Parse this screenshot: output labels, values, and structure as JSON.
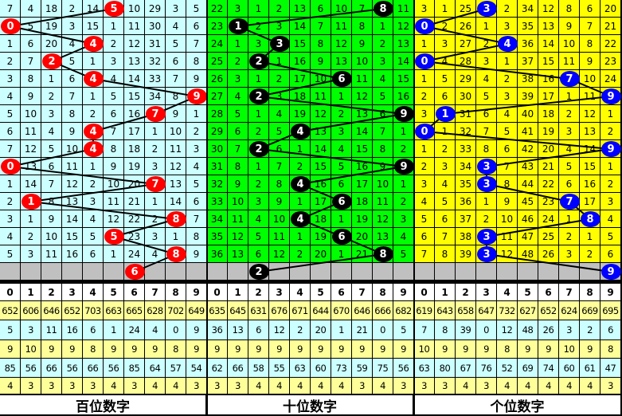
{
  "chart_data": {
    "type": "table",
    "header_digits": [
      "0",
      "1",
      "2",
      "3",
      "4",
      "5",
      "6",
      "7",
      "8",
      "9"
    ],
    "panels": [
      {
        "label": "百位数字",
        "bg_color": "#ccffff",
        "ball_color": "#ff0000",
        "hits": [
          5,
          0,
          4,
          2,
          4,
          9,
          7,
          4,
          4,
          0,
          7,
          1,
          8,
          5,
          8,
          6
        ],
        "rows": [
          [
            7,
            4,
            18,
            2,
            14,
            5,
            10,
            29,
            3,
            5
          ],
          [
            0,
            5,
            19,
            3,
            15,
            1,
            11,
            30,
            4,
            6
          ],
          [
            1,
            6,
            20,
            4,
            4,
            2,
            12,
            31,
            5,
            7
          ],
          [
            2,
            7,
            2,
            5,
            1,
            3,
            13,
            32,
            6,
            8
          ],
          [
            3,
            8,
            1,
            6,
            4,
            4,
            14,
            33,
            7,
            9
          ],
          [
            4,
            9,
            2,
            7,
            1,
            5,
            15,
            34,
            8,
            9
          ],
          [
            5,
            10,
            3,
            8,
            2,
            6,
            16,
            7,
            9,
            1
          ],
          [
            6,
            11,
            4,
            9,
            4,
            7,
            17,
            1,
            10,
            2
          ],
          [
            7,
            12,
            5,
            10,
            4,
            8,
            18,
            2,
            11,
            3
          ],
          [
            0,
            13,
            6,
            11,
            1,
            9,
            19,
            3,
            12,
            4
          ],
          [
            1,
            14,
            7,
            12,
            2,
            10,
            20,
            7,
            13,
            5
          ],
          [
            2,
            1,
            8,
            13,
            3,
            11,
            21,
            1,
            14,
            6
          ],
          [
            3,
            1,
            9,
            14,
            4,
            12,
            22,
            2,
            8,
            7
          ],
          [
            4,
            2,
            10,
            15,
            5,
            5,
            23,
            3,
            1,
            8
          ],
          [
            5,
            3,
            11,
            16,
            6,
            1,
            24,
            4,
            8,
            9
          ]
        ],
        "stats": [
          [
            652,
            606,
            646,
            652,
            703,
            663,
            665,
            628,
            702,
            649
          ],
          [
            5,
            3,
            11,
            16,
            6,
            1,
            24,
            4,
            0,
            9
          ],
          [
            9,
            10,
            9,
            9,
            8,
            9,
            9,
            9,
            8,
            9
          ],
          [
            85,
            56,
            66,
            56,
            66,
            56,
            85,
            64,
            57,
            54
          ],
          [
            4,
            3,
            3,
            3,
            3,
            4,
            3,
            4,
            4,
            3
          ]
        ]
      },
      {
        "label": "十位数字",
        "bg_color": "#00ff00",
        "ball_color": "#000000",
        "hits": [
          8,
          1,
          3,
          2,
          6,
          2,
          9,
          4,
          2,
          9,
          4,
          6,
          4,
          6,
          8,
          2
        ],
        "rows": [
          [
            22,
            3,
            1,
            2,
            13,
            6,
            10,
            7,
            8,
            11
          ],
          [
            23,
            1,
            2,
            3,
            14,
            7,
            11,
            8,
            1,
            12
          ],
          [
            24,
            1,
            3,
            3,
            15,
            8,
            12,
            9,
            2,
            13
          ],
          [
            25,
            2,
            2,
            1,
            16,
            9,
            13,
            10,
            3,
            14
          ],
          [
            26,
            3,
            1,
            2,
            17,
            10,
            6,
            11,
            4,
            15
          ],
          [
            27,
            4,
            2,
            3,
            18,
            11,
            1,
            12,
            5,
            16
          ],
          [
            28,
            5,
            1,
            4,
            19,
            12,
            2,
            13,
            6,
            9
          ],
          [
            29,
            6,
            2,
            5,
            4,
            13,
            3,
            14,
            7,
            1
          ],
          [
            30,
            7,
            2,
            6,
            1,
            14,
            4,
            15,
            8,
            2
          ],
          [
            31,
            8,
            1,
            7,
            2,
            15,
            5,
            16,
            9,
            9
          ],
          [
            32,
            9,
            2,
            8,
            4,
            16,
            6,
            17,
            10,
            1
          ],
          [
            33,
            10,
            3,
            9,
            1,
            17,
            6,
            18,
            11,
            2
          ],
          [
            34,
            11,
            4,
            10,
            4,
            18,
            1,
            19,
            12,
            3
          ],
          [
            35,
            12,
            5,
            11,
            1,
            19,
            6,
            20,
            13,
            4
          ],
          [
            36,
            13,
            6,
            12,
            2,
            20,
            1,
            21,
            8,
            5
          ]
        ],
        "stats": [
          [
            635,
            645,
            631,
            676,
            671,
            644,
            670,
            646,
            666,
            682
          ],
          [
            36,
            13,
            6,
            12,
            2,
            20,
            1,
            21,
            0,
            5
          ],
          [
            9,
            9,
            9,
            9,
            9,
            9,
            9,
            9,
            9,
            9
          ],
          [
            62,
            66,
            58,
            55,
            63,
            60,
            73,
            59,
            75,
            56
          ],
          [
            3,
            3,
            4,
            4,
            4,
            4,
            4,
            3,
            4,
            3
          ]
        ]
      },
      {
        "label": "个位数字",
        "bg_color": "#ffff00",
        "ball_color": "#0000ff",
        "hits": [
          3,
          0,
          4,
          0,
          7,
          9,
          1,
          0,
          9,
          3,
          3,
          7,
          8,
          3,
          3,
          9
        ],
        "rows": [
          [
            3,
            1,
            25,
            3,
            2,
            34,
            12,
            8,
            6,
            20
          ],
          [
            0,
            2,
            26,
            1,
            3,
            35,
            13,
            9,
            7,
            21
          ],
          [
            1,
            3,
            27,
            2,
            4,
            36,
            14,
            10,
            8,
            22
          ],
          [
            0,
            4,
            28,
            3,
            1,
            37,
            15,
            11,
            9,
            23
          ],
          [
            1,
            5,
            29,
            4,
            2,
            38,
            16,
            7,
            10,
            24
          ],
          [
            2,
            6,
            30,
            5,
            3,
            39,
            17,
            1,
            11,
            9
          ],
          [
            3,
            1,
            31,
            6,
            4,
            40,
            18,
            2,
            12,
            1
          ],
          [
            0,
            1,
            32,
            7,
            5,
            41,
            19,
            3,
            13,
            2
          ],
          [
            1,
            2,
            33,
            8,
            6,
            42,
            20,
            4,
            14,
            9
          ],
          [
            2,
            3,
            34,
            3,
            7,
            43,
            21,
            5,
            15,
            1
          ],
          [
            3,
            4,
            35,
            3,
            8,
            44,
            22,
            6,
            16,
            2
          ],
          [
            4,
            5,
            36,
            1,
            9,
            45,
            23,
            7,
            17,
            3
          ],
          [
            5,
            6,
            37,
            2,
            10,
            46,
            24,
            1,
            8,
            4
          ],
          [
            6,
            7,
            38,
            3,
            11,
            47,
            25,
            2,
            1,
            5
          ],
          [
            7,
            8,
            39,
            3,
            12,
            48,
            26,
            3,
            2,
            6
          ]
        ],
        "stats": [
          [
            619,
            643,
            658,
            647,
            732,
            627,
            652,
            624,
            669,
            695
          ],
          [
            7,
            8,
            39,
            0,
            12,
            48,
            26,
            3,
            2,
            6
          ],
          [
            10,
            9,
            9,
            9,
            8,
            9,
            9,
            10,
            9,
            8
          ],
          [
            63,
            80,
            67,
            76,
            52,
            69,
            74,
            60,
            61,
            47
          ],
          [
            3,
            3,
            4,
            3,
            4,
            4,
            4,
            4,
            4,
            3
          ]
        ]
      }
    ],
    "gray_row_color": "#c0c0c0",
    "stat_row_colors": [
      "#ffff99",
      "#ccffff",
      "#ffff99",
      "#ccffff",
      "#ffff99"
    ]
  }
}
